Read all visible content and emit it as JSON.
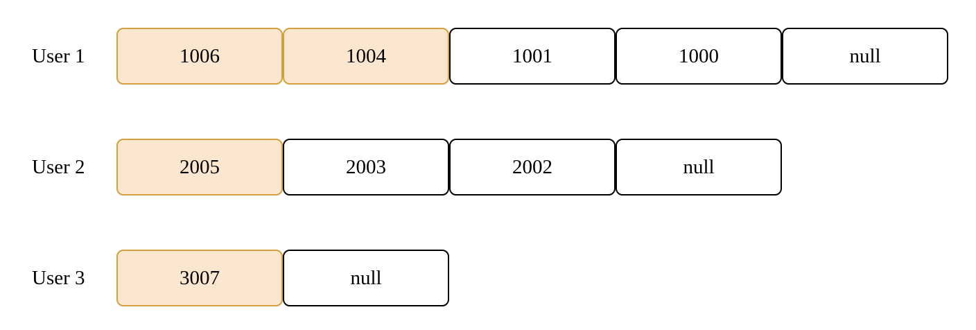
{
  "rows": [
    {
      "label": "User 1",
      "cells": [
        {
          "value": "1006",
          "highlighted": true
        },
        {
          "value": "1004",
          "highlighted": true
        },
        {
          "value": "1001",
          "highlighted": false
        },
        {
          "value": "1000",
          "highlighted": false
        },
        {
          "value": "null",
          "highlighted": false
        }
      ]
    },
    {
      "label": "User 2",
      "cells": [
        {
          "value": "2005",
          "highlighted": true
        },
        {
          "value": "2003",
          "highlighted": false
        },
        {
          "value": "2002",
          "highlighted": false
        },
        {
          "value": "null",
          "highlighted": false
        }
      ]
    },
    {
      "label": "User 3",
      "cells": [
        {
          "value": "3007",
          "highlighted": true
        },
        {
          "value": "null",
          "highlighted": false
        }
      ]
    }
  ],
  "colors": {
    "highlight_fill": "#fbe6d0",
    "highlight_border": "#d4a23c",
    "normal_fill": "#ffffff",
    "normal_border": "#000000"
  }
}
